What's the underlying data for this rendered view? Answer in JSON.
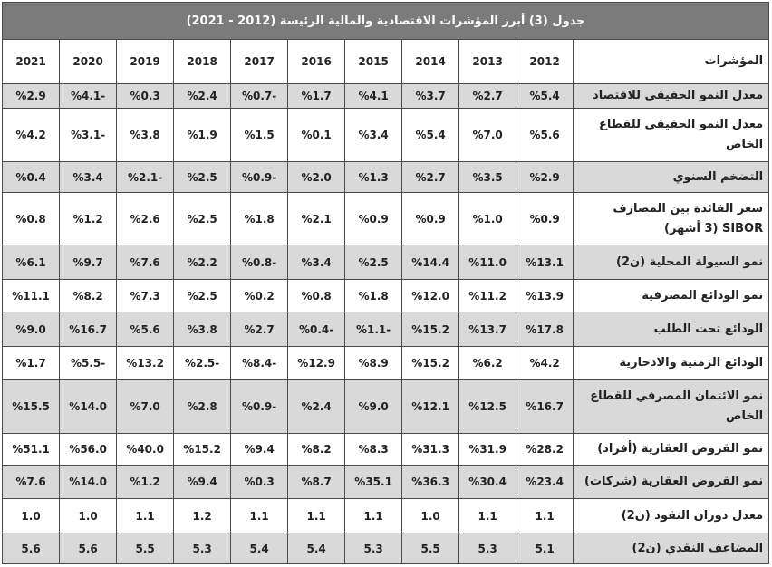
{
  "title": "جدول (3) أبرز المؤشرات الاقتصادية والمالية الرئيسة (2012 - 2021)",
  "header_label": "المؤشرات",
  "years": [
    "2012",
    "2013",
    "2014",
    "2015",
    "2016",
    "2017",
    "2018",
    "2019",
    "2020",
    "2021"
  ],
  "colors": {
    "title_bg": "#7b7b7b",
    "shaded_row": "#d9d9d9"
  },
  "rows": [
    {
      "label": "معدل النمو الحقيقي للاقتصاد",
      "values": [
        "%5.4",
        "%2.7",
        "%3.7",
        "%4.1",
        "%1.7",
        "%0.7-",
        "%2.4",
        "%0.3",
        "%4.1-",
        "%2.9"
      ]
    },
    {
      "label": "معدل النمو الحقيقي للقطاع الخاص",
      "values": [
        "%5.6",
        "%7.0",
        "%5.4",
        "%3.4",
        "%0.1",
        "%1.5",
        "%1.9",
        "%3.8",
        "%3.1-",
        "%4.2"
      ]
    },
    {
      "label": "التضخم السنوي",
      "values": [
        "%2.9",
        "%3.5",
        "%2.7",
        "%1.3",
        "%2.0",
        "%0.9-",
        "%2.5",
        "%2.1-",
        "%3.4",
        "%0.4"
      ]
    },
    {
      "label": "سعر الفائدة بين المصارف SIBOR (3 أشهر)",
      "values": [
        "%0.9",
        "%1.0",
        "%0.9",
        "%0.9",
        "%2.1",
        "%1.8",
        "%2.5",
        "%2.6",
        "%1.2",
        "%0.8"
      ]
    },
    {
      "label": "نمو السيولة المحلية (ن2)",
      "values": [
        "%13.1",
        "%11.0",
        "%14.4",
        "%2.5",
        "%3.4",
        "%0.8-",
        "%2.2",
        "%7.6",
        "%9.7",
        "%6.1"
      ]
    },
    {
      "label": "نمو الودائع المصرفية",
      "values": [
        "%13.9",
        "%11.2",
        "%12.0",
        "%1.8",
        "%0.8",
        "%0.2",
        "%2.5",
        "%7.3",
        "%8.2",
        "%11.1"
      ]
    },
    {
      "label": "الودائع تحت الطلب",
      "values": [
        "%17.8",
        "%13.7",
        "%15.2",
        "%1.1-",
        "%0.4-",
        "%2.7",
        "%3.8",
        "%5.6",
        "%16.7",
        "%9.0"
      ]
    },
    {
      "label": "الودائع الزمنية والادخارية",
      "values": [
        "%4.2",
        "%6.2",
        "%15.2",
        "%8.9",
        "%12.9",
        "%8.4-",
        "%2.5-",
        "%13.2",
        "%5.5-",
        "%1.7"
      ]
    },
    {
      "label": "نمو الائتمان المصرفي للقطاع الخاص",
      "values": [
        "%16.7",
        "%12.5",
        "%12.1",
        "%9.0",
        "%2.4",
        "%0.9-",
        "%2.8",
        "%7.0",
        "%14.0",
        "%15.5"
      ]
    },
    {
      "label": "نمو القروض العقارية (أفراد)",
      "values": [
        "%28.2",
        "%31.9",
        "%31.3",
        "%8.3",
        "%8.2",
        "%9.4",
        "%15.2",
        "%40.0",
        "%56.0",
        "%51.1"
      ]
    },
    {
      "label": "نمو القروض العقارية (شركات)",
      "values": [
        "%23.4",
        "%30.4",
        "%36.3",
        "%35.1",
        "%8.7",
        "%0.3",
        "%9.4",
        "%1.2",
        "%14.0",
        "%7.6"
      ]
    },
    {
      "label": "معدل دوران النقود (ن2)",
      "values": [
        "1.1",
        "1.1",
        "1.0",
        "1.1",
        "1.1",
        "1.1",
        "1.2",
        "1.1",
        "1.0",
        "1.0"
      ]
    },
    {
      "label": "المضاعف النقدي (ن2)",
      "values": [
        "5.1",
        "5.3",
        "5.5",
        "5.3",
        "5.4",
        "5.4",
        "5.3",
        "5.5",
        "5.6",
        "5.6"
      ]
    }
  ]
}
